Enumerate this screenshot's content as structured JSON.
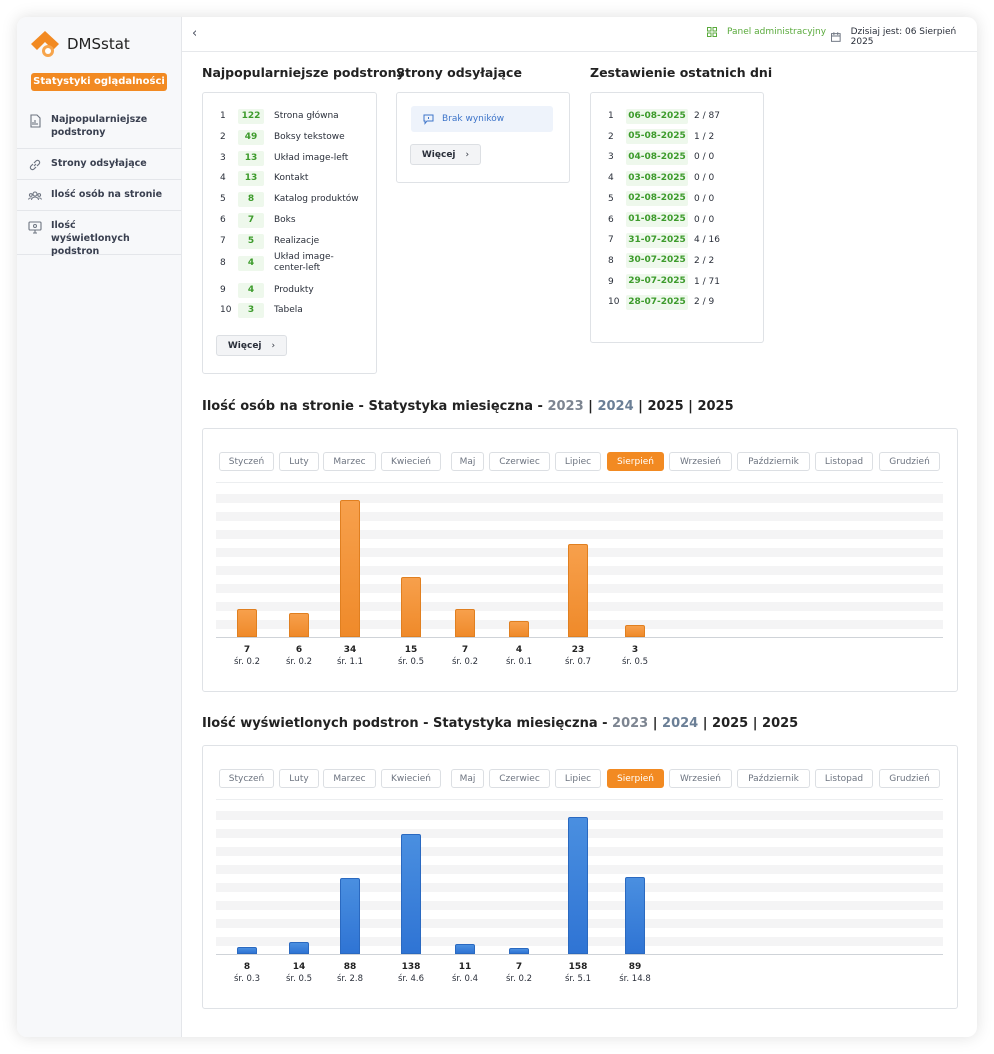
{
  "app": {
    "name": "DMSstat"
  },
  "sidebar": {
    "stat_button": "Statystyki oglądalności",
    "items": [
      {
        "label": "Najpopularniejsze podstrony",
        "icon": "document-chart-icon"
      },
      {
        "label": "Strony odsyłające",
        "icon": "link-icon"
      },
      {
        "label": "Ilość osób na stronie",
        "icon": "users-icon"
      },
      {
        "label": "Ilość wyświetlonych podstron",
        "icon": "monitor-icon"
      }
    ]
  },
  "topbar": {
    "admin_label": "Panel administracyjny",
    "today_label": "Dzisiaj jest: 06 Sierpień 2025"
  },
  "popular": {
    "title": "Najpopularniejsze podstrony",
    "more": "Więcej",
    "rows": [
      {
        "n": "1",
        "count": "122",
        "name": "Strona główna"
      },
      {
        "n": "2",
        "count": "49",
        "name": "Boksy tekstowe"
      },
      {
        "n": "3",
        "count": "13",
        "name": "Układ image-left"
      },
      {
        "n": "4",
        "count": "13",
        "name": "Kontakt"
      },
      {
        "n": "5",
        "count": "8",
        "name": "Katalog produktów"
      },
      {
        "n": "6",
        "count": "7",
        "name": "Boks"
      },
      {
        "n": "7",
        "count": "5",
        "name": "Realizacje"
      },
      {
        "n": "8",
        "count": "4",
        "name": "Układ image-center-left"
      },
      {
        "n": "9",
        "count": "4",
        "name": "Produkty"
      },
      {
        "n": "10",
        "count": "3",
        "name": "Tabela"
      }
    ]
  },
  "referrers": {
    "title": "Strony odsyłające",
    "empty": "Brak wyników",
    "more": "Więcej"
  },
  "recent": {
    "title": "Zestawienie ostatnich dni",
    "rows": [
      {
        "n": "1",
        "date": "06-08-2025",
        "value": "2 / 87"
      },
      {
        "n": "2",
        "date": "05-08-2025",
        "value": "1 / 2"
      },
      {
        "n": "3",
        "date": "04-08-2025",
        "value": "0 / 0"
      },
      {
        "n": "4",
        "date": "03-08-2025",
        "value": "0 / 0"
      },
      {
        "n": "5",
        "date": "02-08-2025",
        "value": "0 / 0"
      },
      {
        "n": "6",
        "date": "01-08-2025",
        "value": "0 / 0"
      },
      {
        "n": "7",
        "date": "31-07-2025",
        "value": "4 / 16"
      },
      {
        "n": "8",
        "date": "30-07-2025",
        "value": "2 / 2"
      },
      {
        "n": "9",
        "date": "29-07-2025",
        "value": "1 / 71"
      },
      {
        "n": "10",
        "date": "28-07-2025",
        "value": "2 / 9"
      }
    ]
  },
  "months": [
    "Styczeń",
    "Luty",
    "Marzec",
    "Kwiecień",
    "Maj",
    "Czerwiec",
    "Lipiec",
    "Sierpień",
    "Wrzesień",
    "Październik",
    "Listopad",
    "Grudzień"
  ],
  "active_month": "Sierpień",
  "colors": {
    "accent": "#f28a22",
    "blue": "#2f74d4",
    "green": "#3d9b2c"
  },
  "visitors": {
    "title": "Ilość osób na stronie - Statystyka miesięczna - ",
    "years": [
      "2023",
      "2024",
      "2025",
      "2025"
    ],
    "sep": " | "
  },
  "pageviews": {
    "title": "Ilość wyświetlonych podstron - Statystyka miesięczna - ",
    "years": [
      "2023",
      "2024",
      "2025",
      "2025"
    ],
    "sep": " | "
  },
  "chart_data": [
    {
      "type": "bar",
      "values": [
        7,
        6,
        34,
        15,
        7,
        4,
        23,
        3
      ],
      "labels": [
        "7",
        "6",
        "34",
        "15",
        "7",
        "4",
        "23",
        "3"
      ],
      "averages": [
        "śr. 0.2",
        "śr. 0.2",
        "śr. 1.1",
        "śr. 0.5",
        "śr. 0.2",
        "śr. 0.1",
        "śr. 0.7",
        "śr. 0.5"
      ],
      "color": "orange",
      "ymax": 34
    },
    {
      "type": "bar",
      "values": [
        8,
        14,
        88,
        138,
        11,
        7,
        158,
        89
      ],
      "labels": [
        "8",
        "14",
        "88",
        "138",
        "11",
        "7",
        "158",
        "89"
      ],
      "averages": [
        "śr. 0.3",
        "śr. 0.5",
        "śr. 2.8",
        "śr. 4.6",
        "śr. 0.4",
        "śr. 0.2",
        "śr. 5.1",
        "śr. 14.8"
      ],
      "color": "blue",
      "ymax": 158
    }
  ]
}
